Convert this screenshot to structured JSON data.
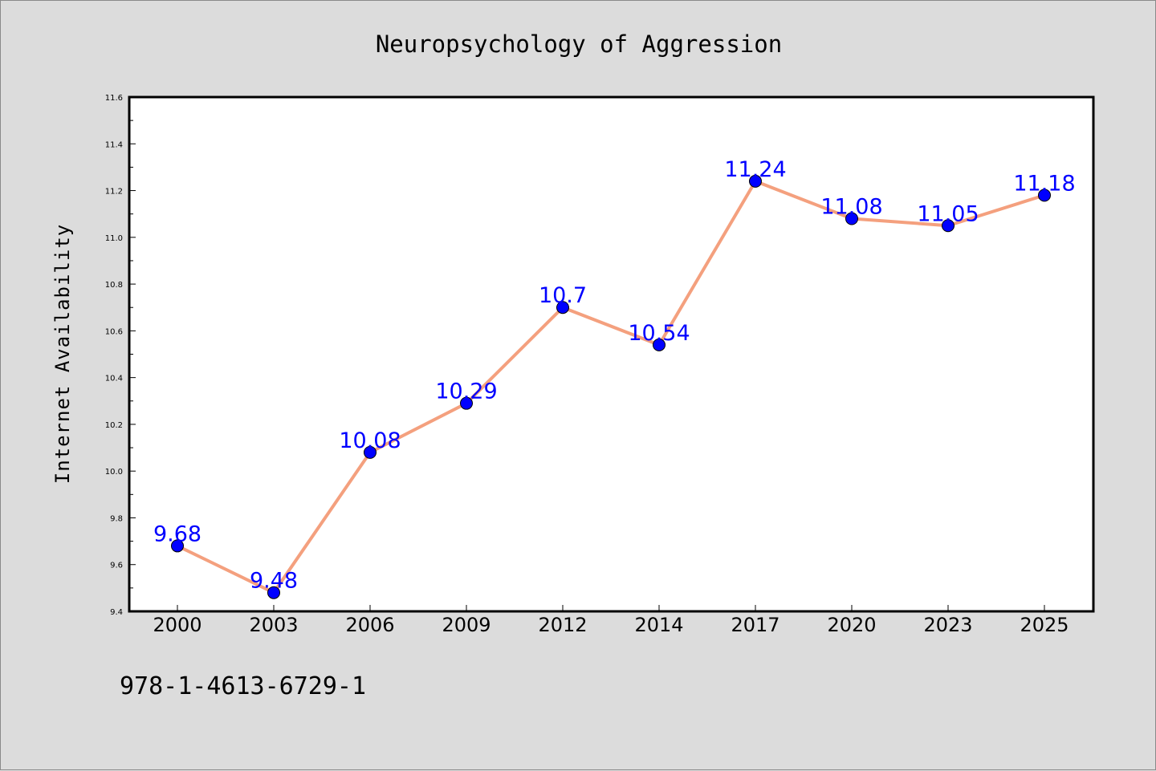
{
  "chart_data": {
    "type": "line",
    "title": "Neuropsychology of Aggression",
    "xlabel": "",
    "ylabel": "Internet Availability",
    "categories": [
      "2000",
      "2003",
      "2006",
      "2009",
      "2012",
      "2014",
      "2017",
      "2020",
      "2023",
      "2025"
    ],
    "series": [
      {
        "values": [
          9.68,
          9.48,
          10.08,
          10.29,
          10.7,
          10.54,
          11.24,
          11.08,
          11.05,
          11.18
        ],
        "data_labels": [
          "9.68",
          "9.48",
          "10.08",
          "10.29",
          "10.7",
          "10.54",
          "11.24",
          "11.08",
          "11.05",
          "11.18"
        ]
      }
    ],
    "ylim": [
      9.4,
      11.6
    ],
    "yticks": [
      "9.4",
      "9.6",
      "9.8",
      "10.0",
      "10.2",
      "10.4",
      "10.6",
      "10.8",
      "11.0",
      "11.2",
      "11.4",
      "11.6"
    ],
    "grid": false,
    "legend": "none",
    "colors": {
      "line": "#f4a07e",
      "marker": "#0000ff",
      "data_label": "#0000ff",
      "background": "#dcdcdc",
      "plot_background": "#ffffff"
    }
  },
  "footer": {
    "isbn": "978-1-4613-6729-1"
  }
}
